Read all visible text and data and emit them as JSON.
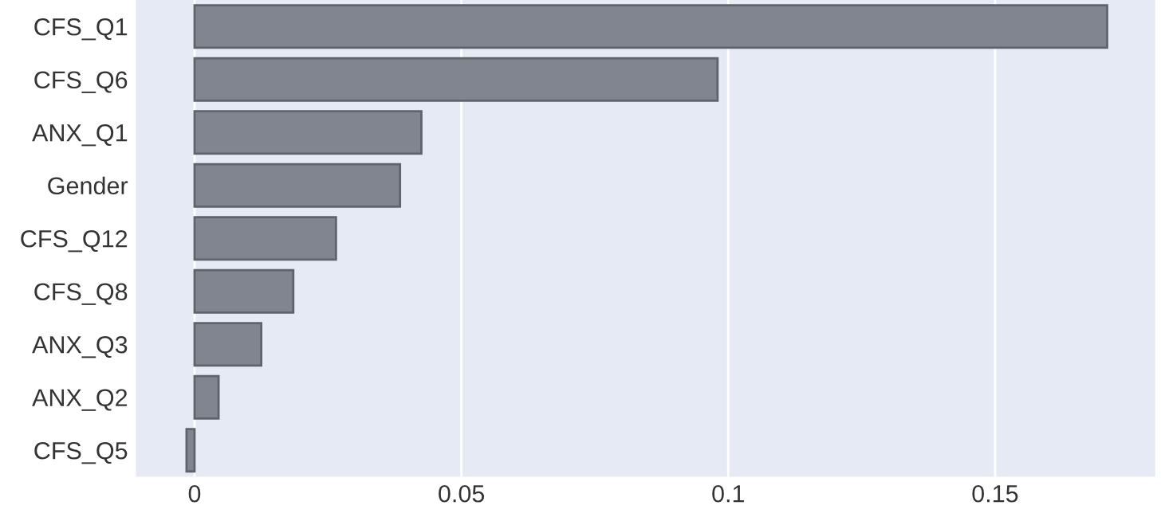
{
  "chart_data": {
    "type": "bar",
    "orientation": "horizontal",
    "categories": [
      "CFS_Q1",
      "CFS_Q6",
      "ANX_Q1",
      "Gender",
      "CFS_Q12",
      "CFS_Q8",
      "ANX_Q3",
      "ANX_Q2",
      "CFS_Q5"
    ],
    "values": [
      0.171,
      0.098,
      0.0425,
      0.0385,
      0.0265,
      0.0185,
      0.0125,
      0.0045,
      -0.0015
    ],
    "color": "#80858f",
    "xlim": [
      -0.011,
      0.18
    ],
    "xticks": [
      0,
      0.05,
      0.1,
      0.15
    ],
    "grid": "x"
  }
}
